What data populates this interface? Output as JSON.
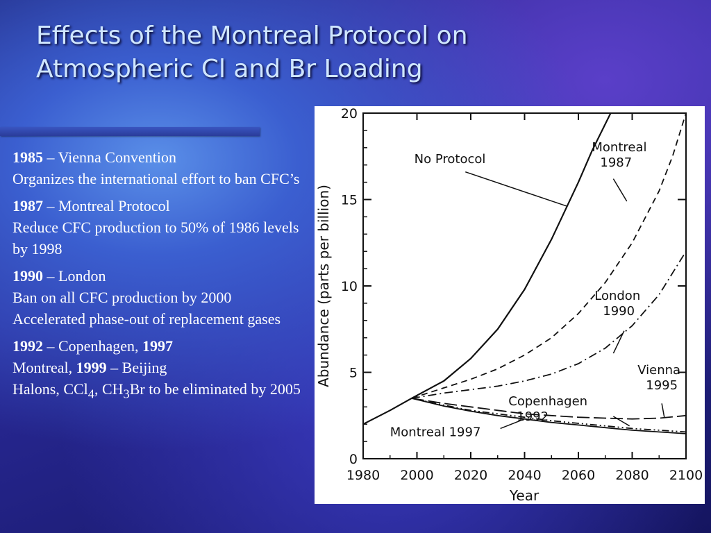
{
  "slide": {
    "title_line1": "Effects of the Montreal Protocol on",
    "title_line2": "Atmospheric Cl and Br Loading"
  },
  "bullets": [
    {
      "year": "1985",
      "event": " – Vienna Convention",
      "detail": "Organizes the international effort to ban CFC’s"
    },
    {
      "year": "1987",
      "event": " – Montreal Protocol",
      "detail": "Reduce CFC production to 50% of 1986 levels by 1998"
    },
    {
      "year": "1990",
      "event": " – London",
      "detail": "Ban on all CFC production by 2000  Accelerated phase-out of replacement gases"
    },
    {
      "year": "1992",
      "event": " – Copenhagen, ",
      "year2": "1997",
      "event2": "Montreal, ",
      "year3": "1999",
      "event3": " – Beijing",
      "detail_a": "Halons, CCl",
      "sub1": "4",
      "detail_b": ", CH",
      "sub2": "3",
      "detail_c": "Br to be eliminated by 2005"
    }
  ],
  "chart_data": {
    "type": "line",
    "xlabel": "Year",
    "ylabel": "Abundance (parts per billion)",
    "xlim": [
      1980,
      2100
    ],
    "ylim": [
      0,
      20
    ],
    "x_ticks": [
      "1980",
      "2000",
      "2020",
      "2040",
      "2060",
      "2080",
      "2100"
    ],
    "y_ticks": [
      "0",
      "5",
      "10",
      "15",
      "20"
    ],
    "grid": false,
    "series": [
      {
        "name": "No Protocol",
        "style": "solid",
        "x": [
          1980,
          1990,
          1998,
          2010,
          2020,
          2030,
          2040,
          2050,
          2060,
          2065,
          2072
        ],
        "y": [
          2.0,
          2.8,
          3.5,
          4.5,
          5.8,
          7.5,
          9.8,
          12.7,
          16.0,
          17.8,
          20.0
        ]
      },
      {
        "name": "Montreal 1987",
        "style": "dashed",
        "x": [
          1998,
          2010,
          2020,
          2030,
          2040,
          2050,
          2060,
          2070,
          2080,
          2090,
          2095,
          2100
        ],
        "y": [
          3.5,
          4.1,
          4.6,
          5.2,
          6.0,
          7.0,
          8.4,
          10.2,
          12.5,
          15.5,
          17.5,
          20.0
        ]
      },
      {
        "name": "London 1990",
        "style": "dashdot",
        "x": [
          1998,
          2010,
          2020,
          2030,
          2040,
          2050,
          2060,
          2070,
          2080,
          2090,
          2100
        ],
        "y": [
          3.5,
          3.8,
          4.0,
          4.2,
          4.5,
          4.9,
          5.5,
          6.4,
          7.7,
          9.5,
          12.0
        ]
      },
      {
        "name": "Vienna 1995",
        "style": "longdash",
        "x": [
          1998,
          2010,
          2020,
          2030,
          2040,
          2050,
          2060,
          2070,
          2080,
          2090,
          2100
        ],
        "y": [
          3.5,
          3.2,
          3.0,
          2.8,
          2.6,
          2.5,
          2.4,
          2.35,
          2.3,
          2.35,
          2.5
        ]
      },
      {
        "name": "Copenhagen 1992",
        "style": "dashdotdot",
        "x": [
          1998,
          2010,
          2020,
          2030,
          2040,
          2050,
          2060,
          2070,
          2080,
          2090,
          2100
        ],
        "y": [
          3.5,
          3.1,
          2.8,
          2.6,
          2.4,
          2.2,
          2.05,
          1.9,
          1.75,
          1.65,
          1.55
        ]
      },
      {
        "name": "Montreal 1997",
        "style": "solid-thin",
        "x": [
          1998,
          2010,
          2020,
          2030,
          2040,
          2050,
          2060,
          2070,
          2080,
          2090,
          2100
        ],
        "y": [
          3.5,
          3.05,
          2.75,
          2.5,
          2.3,
          2.1,
          1.95,
          1.8,
          1.65,
          1.55,
          1.45
        ]
      }
    ],
    "annotations": [
      {
        "text": "No Protocol",
        "line2": "",
        "series": "No Protocol"
      },
      {
        "text": "Montreal",
        "line2": "1987",
        "series": "Montreal 1987"
      },
      {
        "text": "London",
        "line2": "1990",
        "series": "London 1990"
      },
      {
        "text": "Vienna",
        "line2": "1995",
        "series": "Vienna 1995"
      },
      {
        "text": "Copenhagen",
        "line2": "1992",
        "series": "Copenhagen 1992"
      },
      {
        "text": "Montreal 1997",
        "line2": "",
        "series": "Montreal 1997"
      }
    ]
  }
}
